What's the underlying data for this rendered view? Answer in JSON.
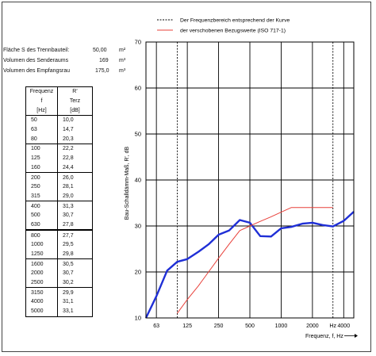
{
  "info": [
    {
      "label": "Fläche S des Trennbauteil:",
      "value": "50,00",
      "unit": "m²"
    },
    {
      "label": "Volumen des Senderaums",
      "value": "169",
      "unit": "m³"
    },
    {
      "label": "Volumen des Empfangsrau",
      "value": "175,0",
      "unit": "m³"
    }
  ],
  "table": {
    "header_freq": [
      "Frequenz",
      "f",
      "[Hz]"
    ],
    "header_r": [
      "R'",
      "Terz",
      "[dB]"
    ],
    "rows": [
      {
        "f": "50",
        "r": "10,0"
      },
      {
        "f": "63",
        "r": "14,7"
      },
      {
        "f": "80",
        "r": "20,3"
      },
      {
        "f": "100",
        "r": "22,2"
      },
      {
        "f": "125",
        "r": "22,8"
      },
      {
        "f": "160",
        "r": "24,4"
      },
      {
        "f": "200",
        "r": "26,0"
      },
      {
        "f": "250",
        "r": "28,1"
      },
      {
        "f": "315",
        "r": "29,0"
      },
      {
        "f": "400",
        "r": "31,3"
      },
      {
        "f": "500",
        "r": "30,7"
      },
      {
        "f": "630",
        "r": "27,8"
      },
      {
        "f": "800",
        "r": "27,7"
      },
      {
        "f": "1000",
        "r": "29,5"
      },
      {
        "f": "1250",
        "r": "29,8"
      },
      {
        "f": "1600",
        "r": "30,5"
      },
      {
        "f": "2000",
        "r": "30,7"
      },
      {
        "f": "2500",
        "r": "30,2"
      },
      {
        "f": "3150",
        "r": "29,9"
      },
      {
        "f": "4000",
        "r": "31,1"
      },
      {
        "f": "5000",
        "r": "33,1"
      }
    ]
  },
  "chart_data": {
    "type": "line",
    "ylabel": "Bau-Schalldämm-Maß, R', dB",
    "xlabel": "Frequenz, f, Hz",
    "x_unit_tick": "Hz",
    "ylim": [
      10,
      70
    ],
    "yticks": [
      "10",
      "20",
      "30",
      "40",
      "50",
      "60",
      "70"
    ],
    "xticks": [
      "63",
      "125",
      "250",
      "500",
      "1000",
      "2000",
      "4000"
    ],
    "x_scale": "log",
    "grid": true,
    "legend": [
      {
        "label": "Der Frequenzbereich entsprechend der Kurve",
        "style": "dashed",
        "color": "#000000"
      },
      {
        "label": "der verschobenen Bezugswerte (ISO 717-1)",
        "style": "solid",
        "color": "#e8403a"
      }
    ],
    "frequency_range_lines": [
      100,
      3150
    ],
    "series": [
      {
        "color": "#1f2fd6",
        "x": [
          50,
          63,
          80,
          100,
          125,
          160,
          200,
          250,
          315,
          400,
          500,
          630,
          800,
          1000,
          1250,
          1600,
          2000,
          2500,
          3150,
          4000,
          5000
        ],
        "y": [
          10.0,
          14.7,
          20.3,
          22.2,
          22.8,
          24.4,
          26.0,
          28.1,
          29.0,
          31.3,
          30.7,
          27.8,
          27.7,
          29.5,
          29.8,
          30.5,
          30.7,
          30.2,
          29.9,
          31.1,
          33.1
        ]
      },
      {
        "color": "#e8403a",
        "x": [
          100,
          125,
          160,
          200,
          250,
          315,
          400,
          500,
          630,
          800,
          1000,
          1250,
          1600,
          2000,
          2500,
          3150
        ],
        "y": [
          11,
          14,
          17,
          20,
          23,
          26,
          29,
          30,
          31,
          32,
          33,
          34,
          34,
          34,
          34,
          34
        ]
      }
    ]
  }
}
